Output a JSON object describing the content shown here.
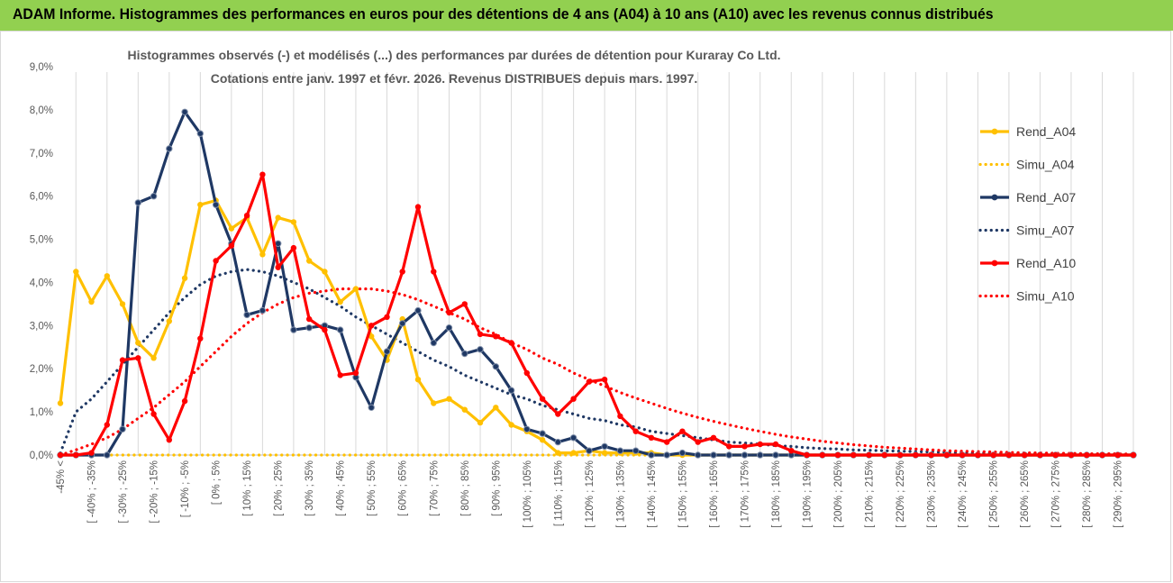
{
  "banner": {
    "title": "ADAM Informe. Histogrammes des performances en euros pour des détentions de 4 ans (A04) à 10 ans (A10) avec les revenus connus distribués",
    "color": "#92d050"
  },
  "chart_data": {
    "type": "line",
    "title": "Histogrammes observés (-) et modélisés (...) des performances par durées de détention pour Kuraray Co Ltd.",
    "subtitle": "Cotations entre janv. 1997 et févr. 2026. Revenus DISTRIBUES depuis mars. 1997.",
    "xlabel": "",
    "ylabel": "",
    "ylim": [
      0,
      9
    ],
    "y_ticks": [
      "0,0%",
      "1,0%",
      "2,0%",
      "3,0%",
      "4,0%",
      "5,0%",
      "6,0%",
      "7,0%",
      "8,0%",
      "9,0%"
    ],
    "grid": "vertical",
    "legend_position": "right",
    "categories": [
      "-45% <",
      "[ -45% ; -40%",
      "[ -40% ; -35%",
      "[ -35% ; -30%",
      "[ -30% ; -25%",
      "[ -25% ; -20%",
      "[ -20% ; -15%",
      "[ -15% ; -10%",
      "[ -10% ; -5%",
      "[ -5% ; 0%",
      "[ 0% ; 5%",
      "[ 5% ; 10%",
      "[ 10% ; 15%",
      "[ 15% ; 20%",
      "[ 20% ; 25%",
      "[ 25% ; 30%",
      "[ 30% ; 35%",
      "[ 35% ; 40%",
      "[ 40% ; 45%",
      "[ 45% ; 50%",
      "[ 50% ; 55%",
      "[ 55% ; 60%",
      "[ 60% ; 65%",
      "[ 65% ; 70%",
      "[ 70% ; 75%",
      "[ 75% ; 80%",
      "[ 80% ; 85%",
      "[ 85% ; 90%",
      "[ 90% ; 95%",
      "[ 95% ; 100%",
      "[ 100% ; 105%",
      "[ 105% ; 110%",
      "[ 110% ; 115%",
      "[ 115% ; 120%",
      "[ 120% ; 125%",
      "[ 125% ; 130%",
      "[ 130% ; 135%",
      "[ 135% ; 140%",
      "[ 140% ; 145%",
      "[ 145% ; 150%",
      "[ 150% ; 155%",
      "[ 155% ; 160%",
      "[ 160% ; 165%",
      "[ 165% ; 170%",
      "[ 170% ; 175%",
      "[ 175% ; 180%",
      "[ 180% ; 185%",
      "[ 185% ; 190%",
      "[ 190% ; 195%",
      "[ 195% ; 200%",
      "[ 200% ; 205%",
      "[ 205% ; 210%",
      "[ 210% ; 215%",
      "[ 215% ; 220%",
      "[ 220% ; 225%",
      "[ 225% ; 230%",
      "[ 230% ; 235%",
      "[ 235% ; 240%",
      "[ 240% ; 245%",
      "[ 245% ; 250%",
      "[ 250% ; 255%",
      "[ 255% ; 260%",
      "[ 260% ; 265%",
      "[ 265% ; 270%",
      "[ 270% ; 275%",
      "[ 275% ; 280%",
      "[ 280% ; 285%",
      "[ 285% ; 290%",
      "[ 290% ; 295%",
      "[ 295% ; 300%"
    ],
    "visible_x_labels": [
      "-45% <",
      "[ -40% ; -35%",
      "[ -30% ; -25%",
      "[ -20% ; -15%",
      "[ -10% ; -5%",
      "[ 0% ; 5%",
      "[ 10% ; 15%",
      "[ 20% ; 25%",
      "[ 30% ; 35%",
      "[ 40% ; 45%",
      "[ 50% ; 55%",
      "[ 60% ; 65%",
      "[ 70% ; 75%",
      "[ 80% ; 85%",
      "[ 90% ; 95%",
      "[ 100% ; 105%",
      "[ 110% ; 115%",
      "[ 120% ; 125%",
      "[ 130% ; 135%",
      "[ 140% ; 145%",
      "[ 150% ; 155%",
      "[ 160% ; 165%",
      "[ 170% ; 175%",
      "[ 180% ; 185%",
      "[ 190% ; 195%",
      "[ 200% ; 205%",
      "[ 210% ; 215%",
      "[ 220% ; 225%",
      "[ 230% ; 235%",
      "[ 240% ; 245%",
      "[ 250% ; 255%",
      "[ 260% ; 265%",
      "[ 270% ; 275%",
      "[ 280% ; 285%",
      "[ 290% ; 295%"
    ],
    "series": [
      {
        "name": "Rend_A04",
        "style": "solid",
        "color": "#ffc000",
        "values": [
          1.2,
          4.25,
          3.55,
          4.15,
          3.5,
          2.6,
          2.25,
          3.1,
          4.1,
          5.8,
          5.9,
          5.25,
          5.5,
          4.65,
          5.5,
          5.4,
          4.5,
          4.25,
          3.55,
          3.85,
          2.75,
          2.2,
          3.15,
          1.75,
          1.2,
          1.3,
          1.05,
          0.75,
          1.1,
          0.7,
          0.55,
          0.35,
          0.05,
          0.05,
          0.1,
          0.05,
          0.05,
          0.05,
          0.05,
          0,
          0,
          0,
          0,
          0,
          0,
          0,
          0,
          0,
          0,
          0,
          0,
          0,
          0,
          0,
          0,
          0,
          0,
          0,
          0,
          0,
          0,
          0,
          0,
          0,
          0,
          0,
          0,
          0,
          0,
          0
        ]
      },
      {
        "name": "Simu_A04",
        "style": "dotted",
        "color": "#ffc000",
        "values": [
          0,
          0,
          0,
          0,
          0,
          0,
          0,
          0,
          0,
          0,
          0,
          0,
          0,
          0,
          0,
          0,
          0,
          0,
          0,
          0,
          0,
          0,
          0,
          0,
          0,
          0,
          0,
          0,
          0,
          0,
          0,
          0,
          0,
          0,
          0,
          0,
          0,
          0,
          0,
          0,
          0,
          0,
          0,
          0,
          0,
          0,
          0,
          0,
          0,
          0,
          0,
          0,
          0,
          0,
          0,
          0,
          0,
          0,
          0,
          0,
          0,
          0,
          0,
          0,
          0,
          0,
          0,
          0,
          0,
          0
        ]
      },
      {
        "name": "Rend_A07",
        "style": "solid",
        "color": "#1f3864",
        "values": [
          0,
          0,
          0,
          0,
          0.6,
          5.85,
          6.0,
          7.1,
          7.95,
          7.45,
          5.8,
          4.9,
          3.25,
          3.35,
          4.9,
          2.9,
          2.95,
          3.0,
          2.9,
          1.8,
          1.1,
          2.4,
          3.05,
          3.35,
          2.6,
          2.95,
          2.35,
          2.45,
          2.05,
          1.5,
          0.6,
          0.5,
          0.3,
          0.4,
          0.1,
          0.2,
          0.1,
          0.1,
          0,
          0,
          0.05,
          0,
          0,
          0,
          0,
          0,
          0,
          0,
          0,
          0,
          0,
          0,
          0,
          0,
          0,
          0,
          0,
          0,
          0,
          0,
          0,
          0,
          0,
          0,
          0,
          0,
          0,
          0,
          0,
          0
        ]
      },
      {
        "name": "Simu_A07",
        "style": "dotted",
        "color": "#1f3864",
        "values": [
          0.05,
          1.0,
          1.3,
          1.7,
          2.1,
          2.5,
          2.9,
          3.3,
          3.65,
          3.95,
          4.15,
          4.25,
          4.3,
          4.25,
          4.15,
          4.0,
          3.85,
          3.65,
          3.45,
          3.2,
          3.0,
          2.8,
          2.6,
          2.4,
          2.2,
          2.05,
          1.85,
          1.7,
          1.55,
          1.4,
          1.3,
          1.15,
          1.05,
          0.95,
          0.85,
          0.8,
          0.7,
          0.65,
          0.55,
          0.5,
          0.45,
          0.4,
          0.35,
          0.3,
          0.28,
          0.25,
          0.22,
          0.2,
          0.17,
          0.15,
          0.14,
          0.12,
          0.11,
          0.1,
          0.09,
          0.08,
          0.07,
          0.06,
          0.05,
          0.05,
          0.04,
          0.04,
          0.03,
          0.03,
          0.03,
          0.02,
          0.02,
          0.02,
          0.02,
          0.01
        ]
      },
      {
        "name": "Rend_A10",
        "style": "solid",
        "color": "#ff0000",
        "values": [
          0,
          0,
          0.05,
          0.7,
          2.2,
          2.25,
          0.95,
          0.35,
          1.25,
          2.7,
          4.5,
          4.85,
          5.55,
          6.5,
          4.35,
          4.8,
          3.15,
          2.9,
          1.85,
          1.9,
          3.0,
          3.2,
          4.25,
          5.75,
          4.25,
          3.3,
          3.5,
          2.8,
          2.75,
          2.6,
          1.9,
          1.3,
          0.95,
          1.3,
          1.7,
          1.75,
          0.9,
          0.55,
          0.4,
          0.3,
          0.55,
          0.3,
          0.4,
          0.2,
          0.2,
          0.25,
          0.25,
          0.1,
          0,
          0,
          0,
          0,
          0,
          0,
          0,
          0,
          0,
          0,
          0,
          0,
          0,
          0,
          0,
          0,
          0,
          0,
          0,
          0,
          0,
          0
        ]
      },
      {
        "name": "Simu_A10",
        "style": "dotted",
        "color": "#ff0000",
        "values": [
          0.0,
          0.12,
          0.25,
          0.4,
          0.6,
          0.85,
          1.1,
          1.4,
          1.7,
          2.05,
          2.4,
          2.75,
          3.05,
          3.3,
          3.5,
          3.65,
          3.75,
          3.8,
          3.85,
          3.85,
          3.85,
          3.8,
          3.72,
          3.6,
          3.45,
          3.3,
          3.15,
          2.95,
          2.8,
          2.6,
          2.45,
          2.25,
          2.1,
          1.9,
          1.75,
          1.6,
          1.45,
          1.32,
          1.2,
          1.08,
          0.97,
          0.87,
          0.78,
          0.7,
          0.62,
          0.55,
          0.48,
          0.42,
          0.37,
          0.32,
          0.28,
          0.24,
          0.21,
          0.18,
          0.16,
          0.14,
          0.12,
          0.1,
          0.09,
          0.08,
          0.07,
          0.06,
          0.05,
          0.05,
          0.04,
          0.04,
          0.03,
          0.03,
          0.03,
          0.02
        ]
      }
    ]
  }
}
